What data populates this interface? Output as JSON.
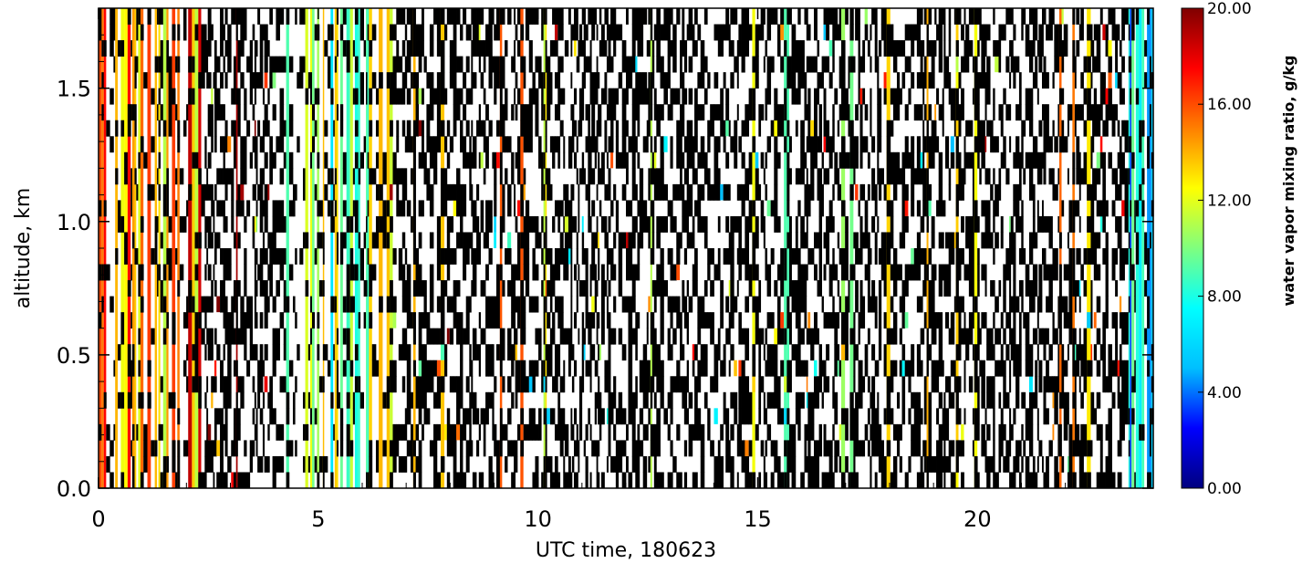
{
  "chart_data": {
    "type": "heatmap",
    "title": "",
    "xlabel": "UTC time, 180623",
    "ylabel": "altitude, km",
    "xlim": [
      0,
      24
    ],
    "ylim": [
      0,
      1.8
    ],
    "x_ticks": [
      0,
      5,
      10,
      15,
      20
    ],
    "x_tick_labels": [
      "0",
      "5",
      "10",
      "15",
      "20"
    ],
    "y_ticks": [
      0.0,
      0.5,
      1.0,
      1.5
    ],
    "y_tick_labels": [
      "0.0",
      "0.5",
      "1.0",
      "1.5"
    ],
    "colorbar": {
      "label": "water vapor mixing ratio, g/kg",
      "range": [
        0,
        20
      ],
      "ticks": [
        0,
        4,
        8,
        12,
        16,
        20
      ],
      "tick_labels": [
        "0.00",
        "4.00",
        "8.00",
        "12.00",
        "16.00",
        "20.00"
      ],
      "colormap": [
        "#00007f",
        "#0000ff",
        "#00bfff",
        "#00ffff",
        "#7fff7f",
        "#ffff00",
        "#ff7f00",
        "#ff0000",
        "#7f0000"
      ]
    },
    "missing_color": "#000000",
    "no_data_color": "#ffffff",
    "grid": false,
    "legend": "colorbar-right",
    "regimes": [
      {
        "x_range": [
          0,
          2.4
        ],
        "description": "dense colored columns, mostly 14-18 g/kg",
        "typical_value": 15
      },
      {
        "x_range": [
          2.4,
          4.2
        ],
        "description": "sparse columns, mostly missing/white",
        "typical_value": 16
      },
      {
        "x_range": [
          4.2,
          6.6
        ],
        "description": "dense colored columns, 8-12 g/kg",
        "typical_value": 10
      },
      {
        "x_range": [
          6.6,
          8.4
        ],
        "description": "mixed colored columns, 12-18 g/kg",
        "typical_value": 15
      },
      {
        "x_range": [
          8.4,
          23.4
        ],
        "description": "mostly missing data with scattered values",
        "typical_value": 12
      },
      {
        "x_range": [
          23.4,
          24
        ],
        "description": "dense colored columns, 4-10 g/kg",
        "typical_value": 6
      }
    ]
  }
}
